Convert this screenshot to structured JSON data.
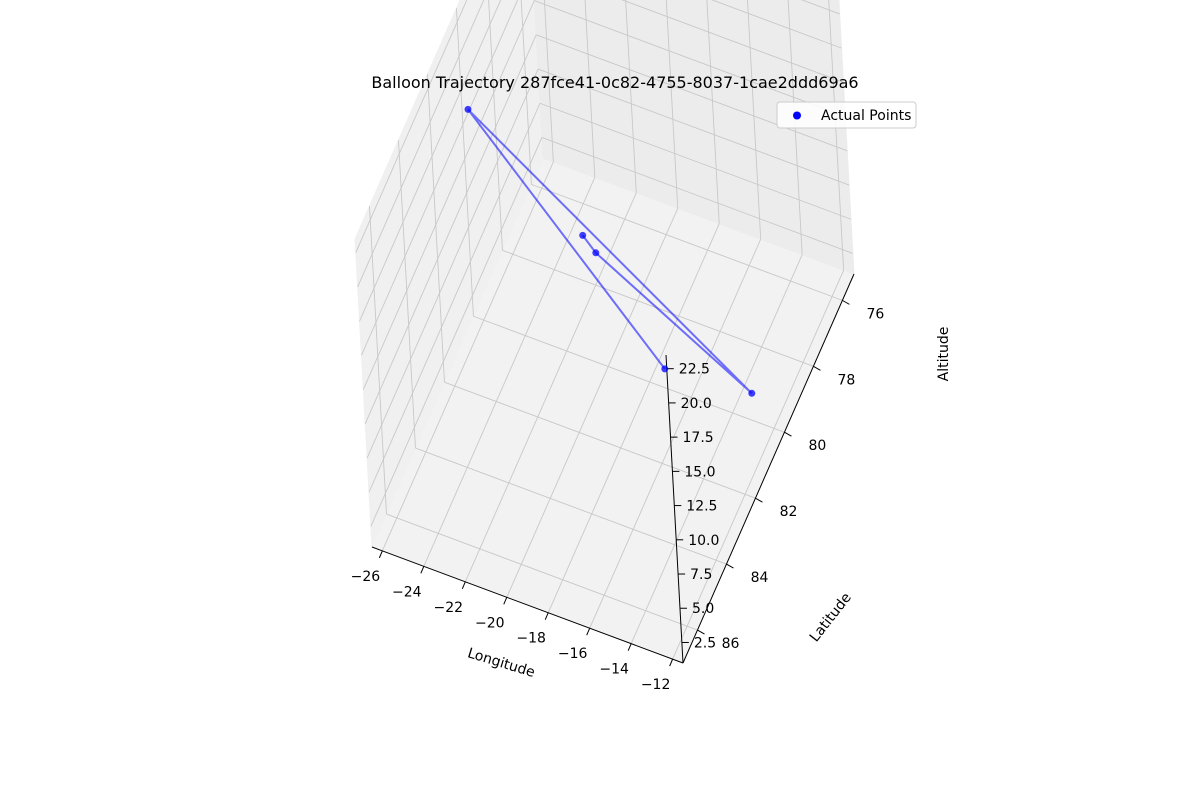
{
  "chart_data": {
    "type": "scatter3d",
    "title": "Balloon Trajectory 287fce41-0c82-4755-8037-1cae2ddd69a6",
    "xlabel": "Longitude",
    "ylabel": "Latitude",
    "zlabel": "Altitude",
    "x_ticks": [
      "−26",
      "−24",
      "−22",
      "−20",
      "−18",
      "−16",
      "−14",
      "−12"
    ],
    "y_ticks": [
      "76",
      "78",
      "80",
      "82",
      "84",
      "86"
    ],
    "z_ticks": [
      "2.5",
      "5.0",
      "7.5",
      "10.0",
      "12.5",
      "15.0",
      "17.5",
      "20.0",
      "22.5"
    ],
    "xlim": [
      -26.5,
      -11.5
    ],
    "ylim": [
      75.2,
      87
    ],
    "zlim": [
      1,
      23.5
    ],
    "grid": true,
    "legend": {
      "position": "top-right",
      "entries": [
        "Actual Points"
      ]
    },
    "series": [
      {
        "name": "Actual Points",
        "color": "#0000ff",
        "line_color": "#0000ff",
        "x": [
          -20.5,
          -19.5,
          -13.0,
          -24.6,
          -12.0
        ],
        "y": [
          80.5,
          81.0,
          80.0,
          82.0,
          86.5
        ],
        "z": [
          11.5,
          12.0,
          3.0,
          22.0,
          21.0
        ]
      }
    ]
  }
}
